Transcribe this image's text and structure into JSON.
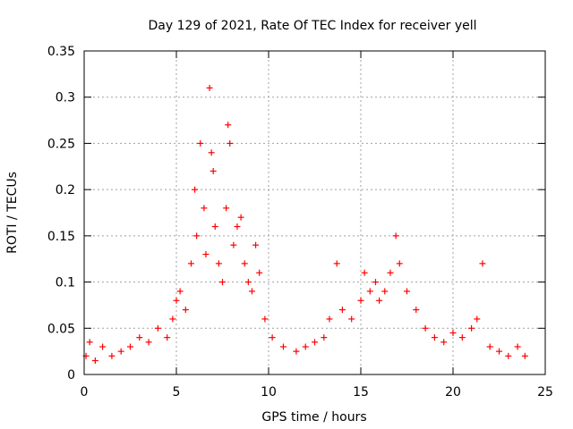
{
  "chart_data": {
    "type": "scatter",
    "title": "Day 129 of 2021, Rate Of TEC Index for receiver yell",
    "xlabel": "GPS time / hours",
    "ylabel": "ROTI / TECUs",
    "xlim": [
      0,
      25
    ],
    "ylim": [
      0,
      0.35
    ],
    "xticks": [
      0,
      5,
      10,
      15,
      20,
      25
    ],
    "xtick_labels": [
      "0",
      "5",
      "10",
      "15",
      "20",
      "25"
    ],
    "yticks": [
      0,
      0.05,
      0.1,
      0.15,
      0.2,
      0.25,
      0.3,
      0.35
    ],
    "ytick_labels": [
      "0",
      "0.05",
      "0.1",
      "0.15",
      "0.2",
      "0.25",
      "0.3",
      "0.35"
    ],
    "grid": true,
    "marker": "+",
    "color": "#ff0000",
    "x": [
      0.1,
      0.3,
      0.6,
      1.0,
      1.5,
      2.0,
      2.5,
      3.0,
      3.5,
      4.0,
      4.5,
      4.8,
      5.0,
      5.2,
      5.5,
      5.8,
      6.0,
      6.1,
      6.3,
      6.5,
      6.6,
      6.8,
      6.9,
      7.0,
      7.1,
      7.3,
      7.5,
      7.7,
      7.8,
      7.9,
      8.1,
      8.3,
      8.5,
      8.7,
      8.9,
      9.1,
      9.3,
      9.5,
      9.8,
      10.2,
      10.8,
      11.5,
      12.0,
      12.5,
      13.0,
      13.3,
      13.7,
      14.0,
      14.5,
      15.0,
      15.2,
      15.5,
      15.8,
      16.0,
      16.3,
      16.6,
      16.9,
      17.1,
      17.5,
      18.0,
      18.5,
      19.0,
      19.5,
      20.0,
      20.5,
      21.0,
      21.3,
      21.6,
      22.0,
      22.5,
      23.0,
      23.5,
      23.9
    ],
    "y": [
      0.02,
      0.035,
      0.015,
      0.03,
      0.02,
      0.025,
      0.03,
      0.04,
      0.035,
      0.05,
      0.04,
      0.06,
      0.08,
      0.09,
      0.07,
      0.12,
      0.2,
      0.15,
      0.25,
      0.18,
      0.13,
      0.31,
      0.24,
      0.22,
      0.16,
      0.12,
      0.1,
      0.18,
      0.27,
      0.25,
      0.14,
      0.16,
      0.17,
      0.12,
      0.1,
      0.09,
      0.14,
      0.11,
      0.06,
      0.04,
      0.03,
      0.025,
      0.03,
      0.035,
      0.04,
      0.06,
      0.12,
      0.07,
      0.06,
      0.08,
      0.11,
      0.09,
      0.1,
      0.08,
      0.09,
      0.11,
      0.15,
      0.12,
      0.09,
      0.07,
      0.05,
      0.04,
      0.035,
      0.045,
      0.04,
      0.05,
      0.06,
      0.12,
      0.03,
      0.025,
      0.02,
      0.03,
      0.02
    ]
  }
}
